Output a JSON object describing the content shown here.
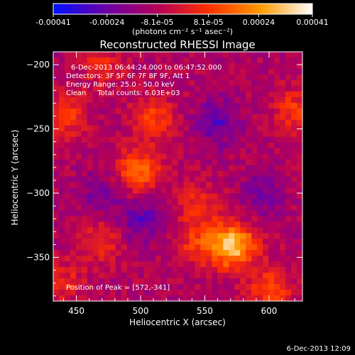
{
  "chart_data": {
    "type": "heatmap",
    "title": "Reconstructed RHESSI Image",
    "xlabel": "Heliocentric X (arcsec)",
    "ylabel": "Heliocentric Y (arcsec)",
    "xlim": [
      432,
      626
    ],
    "ylim": [
      -384,
      -190
    ],
    "x_ticks": [
      "450",
      "500",
      "550",
      "600"
    ],
    "y_ticks": [
      "-200",
      "-250",
      "-300",
      "-350"
    ],
    "x_tick_values": [
      450,
      500,
      550,
      600
    ],
    "y_tick_values": [
      -200,
      -250,
      -300,
      -350
    ],
    "colorbar": {
      "ticks": [
        "-0.00041",
        "-0.00024",
        "-8.1e-05",
        "8.1e-05",
        "0.00024",
        "0.00041"
      ],
      "tick_values": [
        -0.00041,
        -0.00024,
        -8.1e-05,
        8.1e-05,
        0.00024,
        0.00041
      ],
      "range": [
        -0.00041,
        0.00041
      ],
      "unit_label": "(photons cm⁻² s⁻¹ asec⁻²)",
      "colors": [
        "#0010ff",
        "#6a00a8",
        "#b3005a",
        "#ff3000",
        "#ff9a00",
        "#ffffff"
      ]
    },
    "annotations": {
      "time_range": "6-Dec-2013 06:44:24.000 to 06:47:52.000",
      "detectors": "Detectors: 3F 5F 6F 7F 8F 9F, Att 1",
      "energy": "Energy Range: 25.0 - 50.0 keV",
      "clean": "Clean     Total counts: 6.03E+03",
      "peak": "Position of Peak = [572,-341]"
    },
    "peak": [
      572,
      -341
    ],
    "sources": [
      {
        "x": 572,
        "y": -341,
        "amplitude": 0.00041
      },
      {
        "x": 498,
        "y": -283,
        "amplitude": 0.00026
      },
      {
        "x": 510,
        "y": -242,
        "amplitude": 0.00018
      },
      {
        "x": 440,
        "y": -240,
        "amplitude": 0.00018
      },
      {
        "x": 600,
        "y": -375,
        "amplitude": 0.0002
      },
      {
        "x": 620,
        "y": -235,
        "amplitude": 0.00016
      },
      {
        "x": 468,
        "y": -338,
        "amplitude": 0.00015
      },
      {
        "x": 545,
        "y": -310,
        "amplitude": 0.00014
      },
      {
        "x": 440,
        "y": -370,
        "amplitude": 0.00012
      },
      {
        "x": 470,
        "y": -200,
        "amplitude": 0.00012
      },
      {
        "x": 545,
        "y": -340,
        "amplitude": 0.00016
      }
    ],
    "negative_regions": [
      {
        "x": 560,
        "y": -245,
        "amplitude": -0.00018
      },
      {
        "x": 500,
        "y": -320,
        "amplitude": -0.00016
      },
      {
        "x": 470,
        "y": -300,
        "amplitude": -0.00012
      },
      {
        "x": 595,
        "y": -300,
        "amplitude": -0.00012
      }
    ]
  },
  "footer": {
    "timestamp": "6-Dec-2013 12:09"
  }
}
